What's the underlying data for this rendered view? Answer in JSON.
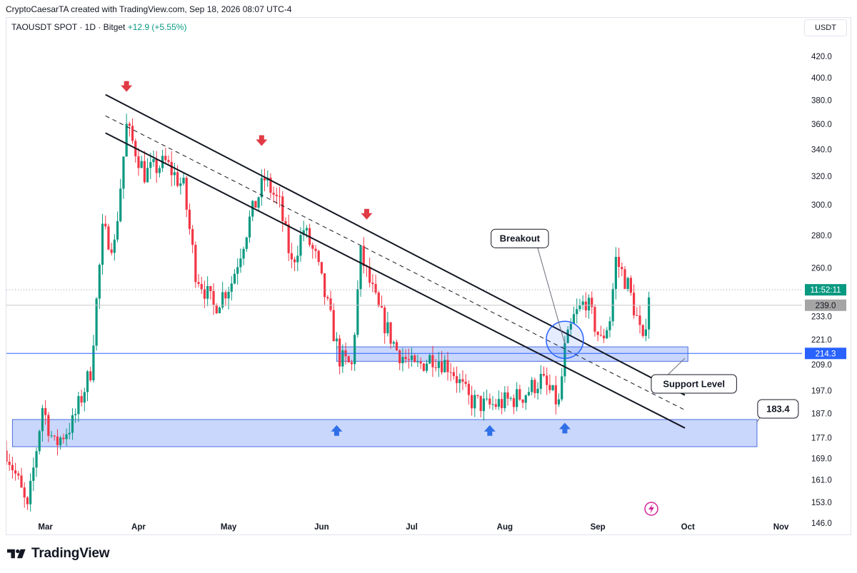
{
  "header": {
    "caption": "CryptoCaesarTA created with TradingView.com, Sep 18, 2026 08:07 UTC-4",
    "symbol": "TAOUSDT SPOT · 1D · Bitget",
    "change": "+12.9 (+5.55%)",
    "currency": "USDT"
  },
  "brand": {
    "name": "TradingView",
    "icon": "tradingview-logo-icon"
  },
  "colors": {
    "up": "#089981",
    "down": "#f23645",
    "zone_fill": "#b8c9fb",
    "zone_edge": "#4a6ee0",
    "arrow_down": "#e03b45",
    "arrow_up": "#2f6fe8"
  },
  "chart_data": {
    "type": "candlestick",
    "y_axis": {
      "scale": "log",
      "ticks": [
        420.0,
        400.0,
        380.0,
        360.0,
        340.0,
        320.0,
        300.0,
        280.0,
        260.0,
        233.0,
        221.0,
        209.0,
        197.0,
        187.0,
        177.0,
        169.0,
        161.0,
        153.0,
        146.0
      ],
      "range": [
        142,
        440
      ]
    },
    "x_axis": {
      "labels": [
        "Mar",
        "Apr",
        "May",
        "Jun",
        "Jul",
        "Aug",
        "Sep",
        "Oct",
        "Nov"
      ],
      "range": [
        "2026-02-16",
        "2026-11-08"
      ]
    },
    "price_tags": [
      {
        "label": "11:52:11",
        "value": 247.5,
        "color": "#089981"
      },
      {
        "label": "239.0",
        "value": 239.0,
        "color": "#a5a5a5"
      },
      {
        "label": "214.3",
        "value": 214.3,
        "color": "#2962ff"
      }
    ],
    "anchors": [
      {
        "date": "2026-02-16",
        "price": 172
      },
      {
        "date": "2026-02-20",
        "price": 160
      },
      {
        "date": "2026-02-23",
        "price": 150
      },
      {
        "date": "2026-02-28",
        "price": 190
      },
      {
        "date": "2026-03-04",
        "price": 174
      },
      {
        "date": "2026-03-10",
        "price": 183
      },
      {
        "date": "2026-03-16",
        "price": 206
      },
      {
        "date": "2026-03-20",
        "price": 282
      },
      {
        "date": "2026-03-24",
        "price": 274
      },
      {
        "date": "2026-03-28",
        "price": 358
      },
      {
        "date": "2026-04-03",
        "price": 322
      },
      {
        "date": "2026-04-10",
        "price": 330
      },
      {
        "date": "2026-04-16",
        "price": 312
      },
      {
        "date": "2026-04-20",
        "price": 258
      },
      {
        "date": "2026-04-26",
        "price": 238
      },
      {
        "date": "2026-05-02",
        "price": 252
      },
      {
        "date": "2026-05-08",
        "price": 290
      },
      {
        "date": "2026-05-13",
        "price": 318
      },
      {
        "date": "2026-05-18",
        "price": 300
      },
      {
        "date": "2026-05-22",
        "price": 262
      },
      {
        "date": "2026-05-26",
        "price": 284
      },
      {
        "date": "2026-05-30",
        "price": 266
      },
      {
        "date": "2026-06-03",
        "price": 238
      },
      {
        "date": "2026-06-07",
        "price": 212
      },
      {
        "date": "2026-06-11",
        "price": 208
      },
      {
        "date": "2026-06-14",
        "price": 268
      },
      {
        "date": "2026-06-20",
        "price": 236
      },
      {
        "date": "2026-06-26",
        "price": 216
      },
      {
        "date": "2026-07-02",
        "price": 207
      },
      {
        "date": "2026-07-08",
        "price": 213
      },
      {
        "date": "2026-07-14",
        "price": 208
      },
      {
        "date": "2026-07-20",
        "price": 193
      },
      {
        "date": "2026-07-26",
        "price": 190
      },
      {
        "date": "2026-08-01",
        "price": 192
      },
      {
        "date": "2026-08-07",
        "price": 195
      },
      {
        "date": "2026-08-13",
        "price": 202
      },
      {
        "date": "2026-08-19",
        "price": 191
      },
      {
        "date": "2026-08-21",
        "price": 216
      },
      {
        "date": "2026-08-24",
        "price": 232
      },
      {
        "date": "2026-08-28",
        "price": 242
      },
      {
        "date": "2026-09-02",
        "price": 220
      },
      {
        "date": "2026-09-05",
        "price": 232
      },
      {
        "date": "2026-09-07",
        "price": 265
      },
      {
        "date": "2026-09-11",
        "price": 250
      },
      {
        "date": "2026-09-14",
        "price": 232
      },
      {
        "date": "2026-09-16",
        "price": 218
      },
      {
        "date": "2026-09-18",
        "price": 246
      }
    ],
    "lines": [
      {
        "name": "channel-upper",
        "from": {
          "date": "2026-03-21",
          "price": 385
        },
        "to": {
          "date": "2026-09-30",
          "price": 195
        }
      },
      {
        "name": "channel-middle",
        "from": {
          "date": "2026-03-21",
          "price": 367
        },
        "to": {
          "date": "2026-09-30",
          "price": 188.5
        }
      },
      {
        "name": "channel-lower",
        "from": {
          "date": "2026-03-21",
          "price": 353
        },
        "to": {
          "date": "2026-09-30",
          "price": 181
        }
      }
    ],
    "zones": [
      {
        "name": "support-zone",
        "from": "2026-06-06",
        "to": "2026-10-01",
        "low": 210.5,
        "high": 217.5
      },
      {
        "name": "lower-zone",
        "from": "2026-02-18",
        "to": "2026-10-24",
        "low": 173.5,
        "high": 184.5
      }
    ],
    "horizontal_levels": [
      {
        "name": "support-level-line",
        "price": 214.3
      },
      {
        "name": "last-price-line",
        "price": 247.5,
        "dotted": true
      },
      {
        "name": "prev-close-line",
        "price": 239.0
      }
    ],
    "markers": [
      {
        "type": "arrow-down",
        "date": "2026-03-28",
        "price": 390
      },
      {
        "type": "arrow-down",
        "date": "2026-05-12",
        "price": 345
      },
      {
        "type": "arrow-down",
        "date": "2026-06-16",
        "price": 292
      },
      {
        "type": "arrow-up",
        "date": "2026-06-06",
        "price": 181
      },
      {
        "type": "arrow-up",
        "date": "2026-07-27",
        "price": 181
      },
      {
        "type": "arrow-up",
        "date": "2026-08-21",
        "price": 182
      }
    ],
    "annotations": [
      {
        "label": "Breakout",
        "date": "2026-08-06",
        "price": 278,
        "target": {
          "date": "2026-08-21",
          "price": 219
        }
      },
      {
        "label": "Support Level",
        "date": "2026-10-03",
        "price": 200,
        "target": {
          "date": "2026-09-30",
          "price": 212
        }
      },
      {
        "label": "183.4",
        "date": "2026-10-31",
        "price": 189,
        "target": {
          "date": "2026-10-24",
          "price": 183.4
        }
      }
    ],
    "breakout_circle": {
      "date": "2026-08-21",
      "price": 221
    }
  }
}
